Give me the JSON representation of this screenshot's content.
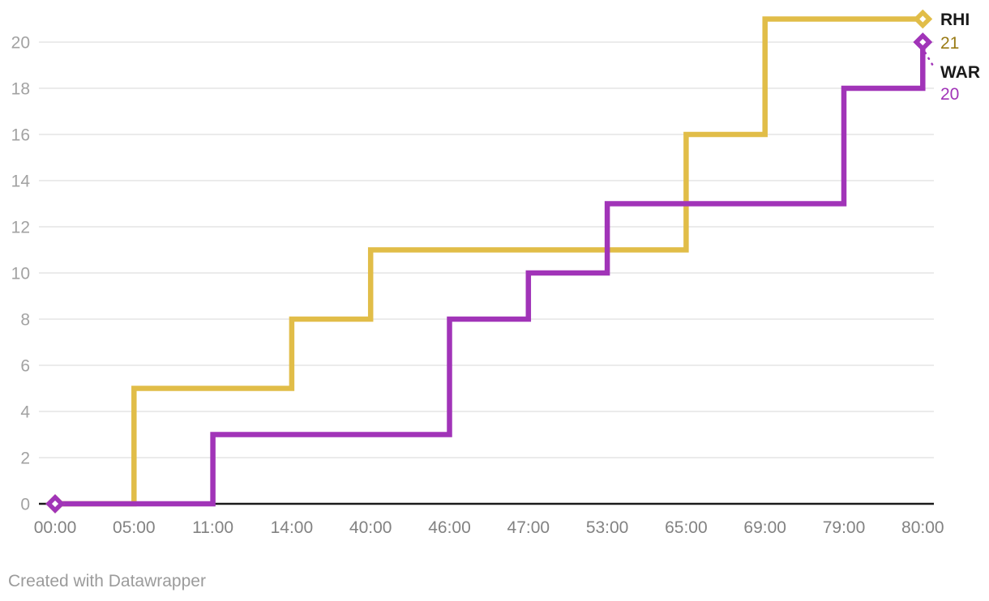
{
  "footer": "Created with Datawrapper",
  "chart_data": {
    "type": "line",
    "subtype": "step-after",
    "title": "",
    "xlabel": "",
    "ylabel": "",
    "categories": [
      "00:00",
      "05:00",
      "11:00",
      "14:00",
      "40:00",
      "46:00",
      "47:00",
      "53:00",
      "65:00",
      "69:00",
      "79:00",
      "80:00"
    ],
    "series": [
      {
        "name": "RHI",
        "color": "#E1BD48",
        "value_text_color": "#9A7B16",
        "values": [
          0,
          5,
          5,
          8,
          11,
          11,
          11,
          11,
          16,
          21,
          21,
          21
        ],
        "final_label": "21"
      },
      {
        "name": "WAR",
        "color": "#A134B8",
        "value_text_color": "#A134B8",
        "values": [
          0,
          0,
          3,
          3,
          3,
          8,
          10,
          13,
          13,
          13,
          18,
          20
        ],
        "final_label": "20"
      }
    ],
    "yticks": [
      0,
      2,
      4,
      6,
      8,
      10,
      12,
      14,
      16,
      18,
      20
    ],
    "ylim": [
      0,
      21
    ],
    "grid": "horizontal",
    "legend_position": "right",
    "colors": {
      "axis_line": "#1a1a1a",
      "gridline": "#e8e8e8",
      "y_tick_label": "#a2a2a2",
      "x_tick_label": "#828282",
      "legend_label": "#1a1a1a",
      "footer_text": "#9b9b9b",
      "background": "#ffffff"
    }
  }
}
